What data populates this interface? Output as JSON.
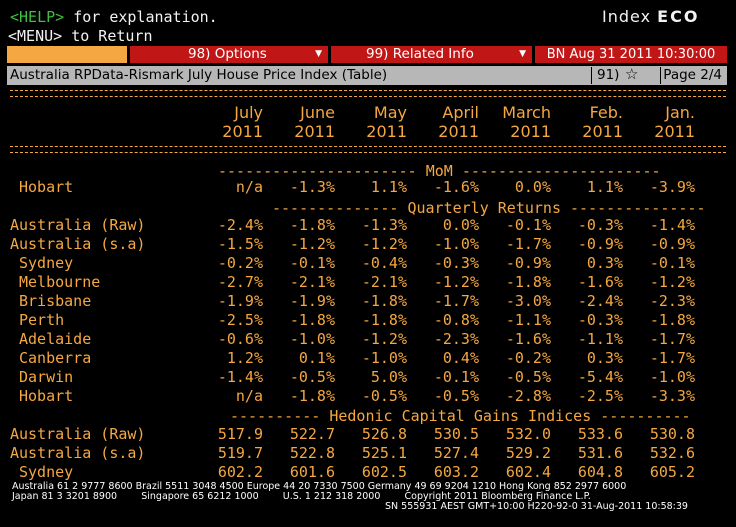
{
  "header": {
    "help_key": "<HELP>",
    "help_text": " for explanation.",
    "menu_line": "<MENU> to Return",
    "index_label": "Index",
    "index_code": "ECO"
  },
  "toolbar": {
    "options": "98) Options",
    "related": "99) Related Info",
    "datetime": "BN Aug 31 2011 10:30:00"
  },
  "titlebar": {
    "title": "Australia RPData-Rismark July House Price Index (Table)",
    "page_ref": "91)",
    "page": "Page 2/4"
  },
  "columns": [
    {
      "month": "July",
      "year": "2011"
    },
    {
      "month": "June",
      "year": "2011"
    },
    {
      "month": "May",
      "year": "2011"
    },
    {
      "month": "April",
      "year": "2011"
    },
    {
      "month": "March",
      "year": "2011"
    },
    {
      "month": "Feb.",
      "year": "2011"
    },
    {
      "month": "Jan.",
      "year": "2011"
    }
  ],
  "sections": {
    "mom": "---------------------- MoM ----------------------",
    "quarterly": "-------------- Quarterly Returns ---------------",
    "hedonic": "---------- Hedonic Capital Gains Indices ----------"
  },
  "rows": [
    {
      "label": "Hobart",
      "values": [
        "n/a",
        "-1.3%",
        "1.1%",
        "-1.6%",
        "0.0%",
        "1.1%",
        "-3.9%"
      ]
    },
    {
      "label": "Australia (Raw)",
      "values": [
        "-2.4%",
        "-1.8%",
        "-1.3%",
        "0.0%",
        "-0.1%",
        "-0.3%",
        "-1.4%"
      ]
    },
    {
      "label": "Australia (s.a)",
      "values": [
        "-1.5%",
        "-1.2%",
        "-1.2%",
        "-1.0%",
        "-1.7%",
        "-0.9%",
        "-0.9%"
      ]
    },
    {
      "label": "Sydney",
      "values": [
        "-0.2%",
        "-0.1%",
        "-0.4%",
        "-0.3%",
        "-0.9%",
        "0.3%",
        "-0.1%"
      ]
    },
    {
      "label": "Melbourne",
      "values": [
        "-2.7%",
        "-2.1%",
        "-2.1%",
        "-1.2%",
        "-1.8%",
        "-1.6%",
        "-1.2%"
      ]
    },
    {
      "label": "Brisbane",
      "values": [
        "-1.9%",
        "-1.9%",
        "-1.8%",
        "-1.7%",
        "-3.0%",
        "-2.4%",
        "-2.3%"
      ]
    },
    {
      "label": "Perth",
      "values": [
        "-2.5%",
        "-1.8%",
        "-1.8%",
        "-0.8%",
        "-1.1%",
        "-0.3%",
        "-1.8%"
      ]
    },
    {
      "label": "Adelaide",
      "values": [
        "-0.6%",
        "-1.0%",
        "-1.2%",
        "-2.3%",
        "-1.6%",
        "-1.1%",
        "-1.7%"
      ]
    },
    {
      "label": "Canberra",
      "values": [
        "1.2%",
        "0.1%",
        "-1.0%",
        "0.4%",
        "-0.2%",
        "0.3%",
        "-1.7%"
      ]
    },
    {
      "label": "Darwin",
      "values": [
        "-1.4%",
        "-0.5%",
        "5.0%",
        "-0.1%",
        "-0.5%",
        "-5.4%",
        "-1.0%"
      ]
    },
    {
      "label": "Hobart",
      "values": [
        "n/a",
        "-1.8%",
        "-0.5%",
        "-0.5%",
        "-2.8%",
        "-2.5%",
        "-3.3%"
      ]
    },
    {
      "label": "Australia (Raw)",
      "values": [
        "517.9",
        "522.7",
        "526.8",
        "530.5",
        "532.0",
        "533.6",
        "530.8"
      ]
    },
    {
      "label": "Australia (s.a)",
      "values": [
        "519.7",
        "522.8",
        "525.1",
        "527.4",
        "529.2",
        "531.6",
        "532.6"
      ]
    },
    {
      "label": "Sydney",
      "values": [
        "602.2",
        "601.6",
        "602.5",
        "603.2",
        "602.4",
        "604.8",
        "605.2"
      ]
    }
  ],
  "footer": {
    "line1": "Australia 61 2 9777 8600 Brazil 5511 3048 4500 Europe 44 20 7330 7500 Germany 49 69 9204 1210 Hong Kong 852 2977 6000",
    "line2": "Japan 81 3 3201 8900        Singapore 65 6212 1000        U.S. 1 212 318 2000        Copyright 2011 Bloomberg Finance L.P.",
    "line3": "SN 555931 AEST GMT+10:00 H220-92-0 31-Aug-2011 10:58:39"
  }
}
